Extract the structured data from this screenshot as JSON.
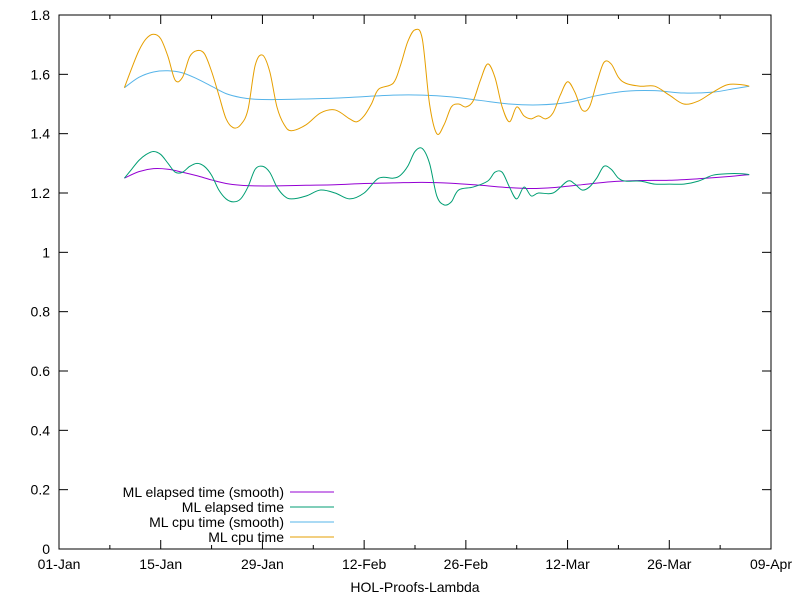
{
  "chart_data": {
    "type": "line",
    "title": "",
    "xlabel": "HOL-Proofs-Lambda",
    "ylabel": "",
    "x_axis_kind": "date",
    "xlim": [
      "2023-01-01",
      "2023-04-09"
    ],
    "ylim": [
      0,
      1.8
    ],
    "x_ticks": [
      {
        "date": "2023-01-01",
        "label": "01-Jan"
      },
      {
        "date": "2023-01-15",
        "label": "15-Jan"
      },
      {
        "date": "2023-01-29",
        "label": "29-Jan"
      },
      {
        "date": "2023-02-12",
        "label": "12-Feb"
      },
      {
        "date": "2023-02-26",
        "label": "26-Feb"
      },
      {
        "date": "2023-03-12",
        "label": "12-Mar"
      },
      {
        "date": "2023-03-26",
        "label": "26-Mar"
      },
      {
        "date": "2023-04-09",
        "label": "09-Apr"
      }
    ],
    "y_ticks": [
      {
        "value": 0,
        "label": "0"
      },
      {
        "value": 0.2,
        "label": "0.2"
      },
      {
        "value": 0.4,
        "label": "0.4"
      },
      {
        "value": 0.6,
        "label": "0.6"
      },
      {
        "value": 0.8,
        "label": "0.8"
      },
      {
        "value": 1,
        "label": "1"
      },
      {
        "value": 1.2,
        "label": "1.2"
      },
      {
        "value": 1.4,
        "label": "1.4"
      },
      {
        "value": 1.6,
        "label": "1.6"
      },
      {
        "value": 1.8,
        "label": "1.8"
      }
    ],
    "grid": false,
    "legend_position": "bottom-left",
    "series": [
      {
        "name": "ML elapsed time (smooth)",
        "color": "#9400d3",
        "points": [
          [
            "2023-01-10",
            1.25
          ],
          [
            "2023-01-12",
            1.272
          ],
          [
            "2023-01-14",
            1.282
          ],
          [
            "2023-01-16",
            1.28
          ],
          [
            "2023-01-18",
            1.27
          ],
          [
            "2023-01-20",
            1.258
          ],
          [
            "2023-01-22",
            1.244
          ],
          [
            "2023-01-24",
            1.232
          ],
          [
            "2023-01-26",
            1.226
          ],
          [
            "2023-01-28",
            1.224
          ],
          [
            "2023-01-31",
            1.224
          ],
          [
            "2023-02-04",
            1.226
          ],
          [
            "2023-02-08",
            1.228
          ],
          [
            "2023-02-12",
            1.232
          ],
          [
            "2023-02-16",
            1.234
          ],
          [
            "2023-02-20",
            1.236
          ],
          [
            "2023-02-24",
            1.233
          ],
          [
            "2023-02-28",
            1.226
          ],
          [
            "2023-03-04",
            1.218
          ],
          [
            "2023-03-07",
            1.215
          ],
          [
            "2023-03-10",
            1.218
          ],
          [
            "2023-03-14",
            1.228
          ],
          [
            "2023-03-18",
            1.238
          ],
          [
            "2023-03-22",
            1.242
          ],
          [
            "2023-03-26",
            1.243
          ],
          [
            "2023-03-30",
            1.248
          ],
          [
            "2023-04-03",
            1.255
          ],
          [
            "2023-04-06",
            1.262
          ]
        ]
      },
      {
        "name": "ML elapsed time",
        "color": "#009e73",
        "points": [
          [
            "2023-01-10",
            1.25
          ],
          [
            "2023-01-11",
            1.28
          ],
          [
            "2023-01-12",
            1.31
          ],
          [
            "2023-01-13",
            1.33
          ],
          [
            "2023-01-14",
            1.34
          ],
          [
            "2023-01-15",
            1.33
          ],
          [
            "2023-01-16",
            1.3
          ],
          [
            "2023-01-17",
            1.27
          ],
          [
            "2023-01-18",
            1.27
          ],
          [
            "2023-01-19",
            1.29
          ],
          [
            "2023-01-20",
            1.3
          ],
          [
            "2023-01-21",
            1.29
          ],
          [
            "2023-01-22",
            1.26
          ],
          [
            "2023-01-23",
            1.21
          ],
          [
            "2023-01-24",
            1.18
          ],
          [
            "2023-01-25",
            1.17
          ],
          [
            "2023-01-26",
            1.18
          ],
          [
            "2023-01-27",
            1.22
          ],
          [
            "2023-01-28",
            1.28
          ],
          [
            "2023-01-29",
            1.29
          ],
          [
            "2023-01-30",
            1.27
          ],
          [
            "2023-01-31",
            1.22
          ],
          [
            "2023-02-01",
            1.19
          ],
          [
            "2023-02-02",
            1.18
          ],
          [
            "2023-02-04",
            1.19
          ],
          [
            "2023-02-06",
            1.21
          ],
          [
            "2023-02-08",
            1.2
          ],
          [
            "2023-02-10",
            1.18
          ],
          [
            "2023-02-12",
            1.2
          ],
          [
            "2023-02-14",
            1.25
          ],
          [
            "2023-02-16",
            1.25
          ],
          [
            "2023-02-17",
            1.26
          ],
          [
            "2023-02-18",
            1.29
          ],
          [
            "2023-02-19",
            1.34
          ],
          [
            "2023-02-20",
            1.35
          ],
          [
            "2023-02-21",
            1.3
          ],
          [
            "2023-02-22",
            1.19
          ],
          [
            "2023-02-23",
            1.16
          ],
          [
            "2023-02-24",
            1.17
          ],
          [
            "2023-02-25",
            1.21
          ],
          [
            "2023-02-27",
            1.22
          ],
          [
            "2023-03-01",
            1.24
          ],
          [
            "2023-03-02",
            1.27
          ],
          [
            "2023-03-03",
            1.27
          ],
          [
            "2023-03-04",
            1.22
          ],
          [
            "2023-03-05",
            1.18
          ],
          [
            "2023-03-06",
            1.22
          ],
          [
            "2023-03-07",
            1.19
          ],
          [
            "2023-03-08",
            1.2
          ],
          [
            "2023-03-10",
            1.2
          ],
          [
            "2023-03-12",
            1.24
          ],
          [
            "2023-03-13",
            1.23
          ],
          [
            "2023-03-14",
            1.21
          ],
          [
            "2023-03-15",
            1.22
          ],
          [
            "2023-03-16",
            1.25
          ],
          [
            "2023-03-17",
            1.29
          ],
          [
            "2023-03-18",
            1.28
          ],
          [
            "2023-03-19",
            1.25
          ],
          [
            "2023-03-20",
            1.24
          ],
          [
            "2023-03-22",
            1.24
          ],
          [
            "2023-03-24",
            1.23
          ],
          [
            "2023-03-26",
            1.23
          ],
          [
            "2023-03-28",
            1.23
          ],
          [
            "2023-03-30",
            1.24
          ],
          [
            "2023-04-01",
            1.26
          ],
          [
            "2023-04-03",
            1.265
          ],
          [
            "2023-04-05",
            1.265
          ],
          [
            "2023-04-06",
            1.262
          ]
        ]
      },
      {
        "name": "ML cpu time (smooth)",
        "color": "#56b4e9",
        "points": [
          [
            "2023-01-10",
            1.555
          ],
          [
            "2023-01-12",
            1.59
          ],
          [
            "2023-01-14",
            1.608
          ],
          [
            "2023-01-16",
            1.612
          ],
          [
            "2023-01-18",
            1.605
          ],
          [
            "2023-01-20",
            1.585
          ],
          [
            "2023-01-22",
            1.56
          ],
          [
            "2023-01-24",
            1.535
          ],
          [
            "2023-01-26",
            1.522
          ],
          [
            "2023-01-28",
            1.516
          ],
          [
            "2023-01-31",
            1.515
          ],
          [
            "2023-02-04",
            1.517
          ],
          [
            "2023-02-08",
            1.52
          ],
          [
            "2023-02-12",
            1.525
          ],
          [
            "2023-02-16",
            1.53
          ],
          [
            "2023-02-20",
            1.53
          ],
          [
            "2023-02-24",
            1.524
          ],
          [
            "2023-02-28",
            1.512
          ],
          [
            "2023-03-04",
            1.5
          ],
          [
            "2023-03-08",
            1.497
          ],
          [
            "2023-03-12",
            1.505
          ],
          [
            "2023-03-16",
            1.528
          ],
          [
            "2023-03-20",
            1.543
          ],
          [
            "2023-03-24",
            1.545
          ],
          [
            "2023-03-28",
            1.537
          ],
          [
            "2023-04-01",
            1.54
          ],
          [
            "2023-04-04",
            1.552
          ],
          [
            "2023-04-06",
            1.56
          ]
        ]
      },
      {
        "name": "ML cpu time",
        "color": "#e69f00",
        "points": [
          [
            "2023-01-10",
            1.555
          ],
          [
            "2023-01-11",
            1.62
          ],
          [
            "2023-01-12",
            1.68
          ],
          [
            "2023-01-13",
            1.72
          ],
          [
            "2023-01-14",
            1.735
          ],
          [
            "2023-01-15",
            1.72
          ],
          [
            "2023-01-16",
            1.66
          ],
          [
            "2023-01-17",
            1.58
          ],
          [
            "2023-01-18",
            1.59
          ],
          [
            "2023-01-19",
            1.66
          ],
          [
            "2023-01-20",
            1.68
          ],
          [
            "2023-01-21",
            1.67
          ],
          [
            "2023-01-22",
            1.61
          ],
          [
            "2023-01-23",
            1.53
          ],
          [
            "2023-01-24",
            1.45
          ],
          [
            "2023-01-25",
            1.42
          ],
          [
            "2023-01-26",
            1.43
          ],
          [
            "2023-01-27",
            1.48
          ],
          [
            "2023-01-28",
            1.63
          ],
          [
            "2023-01-29",
            1.665
          ],
          [
            "2023-01-30",
            1.61
          ],
          [
            "2023-01-31",
            1.49
          ],
          [
            "2023-02-01",
            1.43
          ],
          [
            "2023-02-02",
            1.41
          ],
          [
            "2023-02-04",
            1.43
          ],
          [
            "2023-02-06",
            1.47
          ],
          [
            "2023-02-08",
            1.48
          ],
          [
            "2023-02-10",
            1.45
          ],
          [
            "2023-02-11",
            1.44
          ],
          [
            "2023-02-12",
            1.46
          ],
          [
            "2023-02-13",
            1.5
          ],
          [
            "2023-02-14",
            1.55
          ],
          [
            "2023-02-16",
            1.57
          ],
          [
            "2023-02-17",
            1.63
          ],
          [
            "2023-02-18",
            1.71
          ],
          [
            "2023-02-19",
            1.75
          ],
          [
            "2023-02-20",
            1.72
          ],
          [
            "2023-02-21",
            1.5
          ],
          [
            "2023-02-22",
            1.4
          ],
          [
            "2023-02-23",
            1.43
          ],
          [
            "2023-02-24",
            1.49
          ],
          [
            "2023-02-25",
            1.5
          ],
          [
            "2023-02-26",
            1.49
          ],
          [
            "2023-02-27",
            1.51
          ],
          [
            "2023-02-28",
            1.58
          ],
          [
            "2023-03-01",
            1.635
          ],
          [
            "2023-03-02",
            1.59
          ],
          [
            "2023-03-03",
            1.49
          ],
          [
            "2023-03-04",
            1.44
          ],
          [
            "2023-03-05",
            1.49
          ],
          [
            "2023-03-06",
            1.46
          ],
          [
            "2023-03-07",
            1.45
          ],
          [
            "2023-03-08",
            1.46
          ],
          [
            "2023-03-09",
            1.45
          ],
          [
            "2023-03-10",
            1.47
          ],
          [
            "2023-03-11",
            1.53
          ],
          [
            "2023-03-12",
            1.575
          ],
          [
            "2023-03-13",
            1.54
          ],
          [
            "2023-03-14",
            1.48
          ],
          [
            "2023-03-15",
            1.49
          ],
          [
            "2023-03-16",
            1.57
          ],
          [
            "2023-03-17",
            1.64
          ],
          [
            "2023-03-18",
            1.635
          ],
          [
            "2023-03-19",
            1.59
          ],
          [
            "2023-03-20",
            1.57
          ],
          [
            "2023-03-22",
            1.56
          ],
          [
            "2023-03-24",
            1.56
          ],
          [
            "2023-03-26",
            1.53
          ],
          [
            "2023-03-28",
            1.5
          ],
          [
            "2023-03-30",
            1.51
          ],
          [
            "2023-04-01",
            1.54
          ],
          [
            "2023-04-03",
            1.565
          ],
          [
            "2023-04-05",
            1.565
          ],
          [
            "2023-04-06",
            1.56
          ]
        ]
      }
    ]
  }
}
